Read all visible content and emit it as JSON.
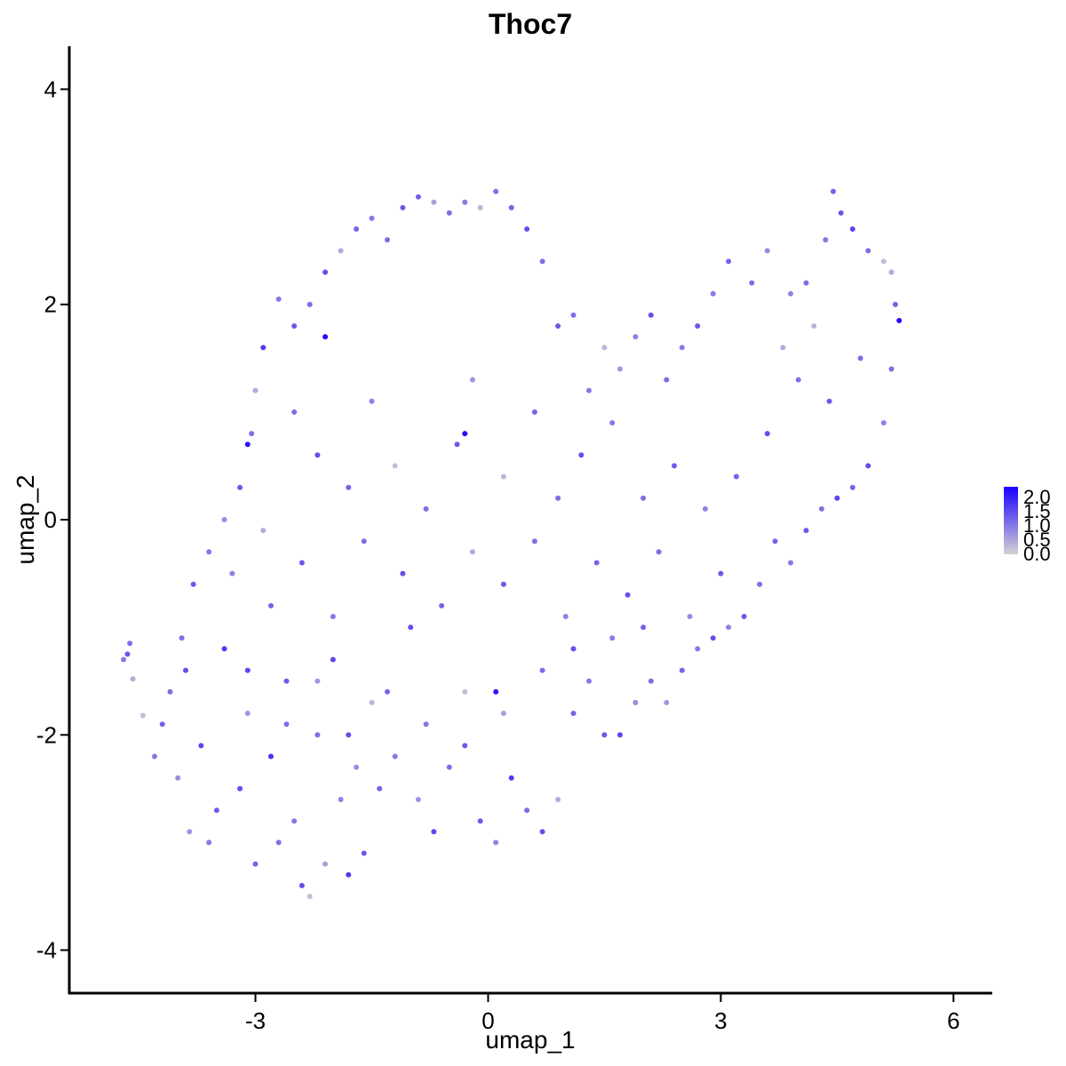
{
  "chart_data": {
    "type": "scatter",
    "title": "Thoc7",
    "xlabel": "umap_1",
    "ylabel": "umap_2",
    "xlim": [
      -5.4,
      6.5
    ],
    "ylim": [
      -4.4,
      4.4
    ],
    "xticks": [
      -3,
      0,
      3,
      6
    ],
    "yticks": [
      -4,
      -2,
      0,
      2,
      4
    ],
    "xtick_labels": [
      "-3",
      "0",
      "3",
      "6"
    ],
    "ytick_labels": [
      "-4",
      "-2",
      "0",
      "2",
      "4"
    ],
    "grid": false,
    "legend": {
      "placement": "right",
      "breaks": [
        "2.0",
        "1.5",
        "1.0",
        "0.5",
        "0.0"
      ],
      "range": [
        0.0,
        2.1
      ],
      "low_color": "#d3d3d3",
      "high_color": "#1a00ff"
    },
    "series": [
      {
        "points": [
          [
            -4.7,
            -1.3,
            0.9
          ],
          [
            -4.65,
            -1.25,
            1.2
          ],
          [
            -4.62,
            -1.15,
            1.0
          ],
          [
            -4.58,
            -1.48,
            0.4
          ],
          [
            -4.45,
            -1.82,
            0.2
          ],
          [
            -4.3,
            -2.2,
            0.9
          ],
          [
            -4.2,
            -1.9,
            1.1
          ],
          [
            -4.1,
            -1.6,
            1.0
          ],
          [
            -4.0,
            -2.4,
            0.7
          ],
          [
            -3.9,
            -1.4,
            1.3
          ],
          [
            -3.85,
            -2.9,
            0.6
          ],
          [
            -3.7,
            -2.1,
            1.4
          ],
          [
            -3.6,
            -3.0,
            0.9
          ],
          [
            -3.5,
            -2.7,
            1.2
          ],
          [
            -3.4,
            -1.2,
            1.5
          ],
          [
            -3.3,
            -0.5,
            0.8
          ],
          [
            -3.2,
            -2.5,
            1.3
          ],
          [
            -3.1,
            -1.8,
            0.6
          ],
          [
            -3.0,
            -3.2,
            1.1
          ],
          [
            -2.9,
            -0.1,
            0.4
          ],
          [
            -2.8,
            -2.2,
            1.6
          ],
          [
            -2.7,
            -3.0,
            1.0
          ],
          [
            -2.6,
            -1.5,
            1.2
          ],
          [
            -2.5,
            -2.8,
            0.9
          ],
          [
            -2.4,
            -3.4,
            1.3
          ],
          [
            -2.3,
            -3.5,
            0.2
          ],
          [
            -2.2,
            -2.0,
            1.0
          ],
          [
            -2.1,
            -3.2,
            0.5
          ],
          [
            -2.0,
            -1.3,
            1.4
          ],
          [
            -1.9,
            -2.6,
            0.8
          ],
          [
            -1.8,
            -3.3,
            1.5
          ],
          [
            -1.7,
            -2.3,
            0.7
          ],
          [
            -1.6,
            -3.1,
            1.2
          ],
          [
            -1.5,
            -1.7,
            0.3
          ],
          [
            -1.4,
            -2.5,
            1.1
          ],
          [
            -1.2,
            -2.2,
            0.9
          ],
          [
            -1.0,
            -1.0,
            1.3
          ],
          [
            -0.9,
            -2.6,
            0.6
          ],
          [
            -0.7,
            -2.9,
            1.4
          ],
          [
            -0.5,
            -2.3,
            1.0
          ],
          [
            -0.3,
            -1.6,
            0.2
          ],
          [
            -0.1,
            -2.8,
            1.2
          ],
          [
            0.1,
            -3.0,
            0.8
          ],
          [
            0.3,
            -2.4,
            1.5
          ],
          [
            0.5,
            -2.7,
            1.0
          ],
          [
            0.7,
            -2.9,
            1.3
          ],
          [
            0.9,
            -2.6,
            0.4
          ],
          [
            1.1,
            -1.8,
            1.1
          ],
          [
            1.3,
            -1.5,
            0.9
          ],
          [
            1.5,
            -2.0,
            1.2
          ],
          [
            1.7,
            -2.0,
            1.4
          ],
          [
            1.9,
            -1.7,
            0.7
          ],
          [
            2.1,
            -1.5,
            1.0
          ],
          [
            2.3,
            -1.7,
            0.6
          ],
          [
            2.5,
            -1.4,
            1.1
          ],
          [
            2.7,
            -1.2,
            0.9
          ],
          [
            2.9,
            -1.1,
            1.3
          ],
          [
            3.1,
            -1.0,
            0.8
          ],
          [
            3.3,
            -0.9,
            1.2
          ],
          [
            3.5,
            -0.6,
            1.0
          ],
          [
            3.7,
            -0.2,
            1.1
          ],
          [
            3.9,
            -0.4,
            0.9
          ],
          [
            4.1,
            -0.1,
            1.2
          ],
          [
            4.3,
            0.1,
            1.0
          ],
          [
            4.5,
            0.2,
            1.4
          ],
          [
            4.7,
            0.3,
            1.1
          ],
          [
            4.9,
            0.5,
            1.3
          ],
          [
            5.1,
            0.9,
            0.8
          ],
          [
            5.2,
            1.4,
            1.0
          ],
          [
            5.3,
            1.85,
            2.0
          ],
          [
            5.25,
            2.0,
            1.1
          ],
          [
            5.2,
            2.3,
            0.4
          ],
          [
            5.1,
            2.4,
            0.2
          ],
          [
            4.9,
            2.5,
            1.0
          ],
          [
            4.7,
            2.7,
            1.4
          ],
          [
            4.55,
            2.85,
            1.2
          ],
          [
            4.45,
            3.05,
            1.1
          ],
          [
            4.35,
            2.6,
            0.9
          ],
          [
            4.1,
            2.2,
            1.0
          ],
          [
            3.9,
            2.1,
            0.8
          ],
          [
            3.6,
            2.5,
            0.7
          ],
          [
            3.4,
            2.2,
            1.0
          ],
          [
            3.1,
            2.4,
            1.1
          ],
          [
            2.9,
            2.1,
            0.9
          ],
          [
            2.7,
            1.8,
            1.2
          ],
          [
            2.5,
            1.6,
            0.9
          ],
          [
            2.3,
            1.3,
            1.0
          ],
          [
            2.1,
            1.9,
            1.3
          ],
          [
            1.9,
            1.7,
            0.8
          ],
          [
            1.7,
            1.4,
            0.6
          ],
          [
            1.5,
            1.6,
            0.3
          ],
          [
            1.3,
            1.2,
            0.9
          ],
          [
            1.1,
            1.9,
            1.0
          ],
          [
            0.9,
            1.8,
            1.2
          ],
          [
            0.7,
            2.4,
            1.0
          ],
          [
            0.5,
            2.7,
            1.3
          ],
          [
            0.3,
            2.9,
            1.1
          ],
          [
            0.1,
            3.05,
            1.0
          ],
          [
            -0.1,
            2.9,
            0.3
          ],
          [
            -0.3,
            2.95,
            0.9
          ],
          [
            -0.5,
            2.85,
            1.0
          ],
          [
            -0.7,
            2.95,
            0.5
          ],
          [
            -0.9,
            3.0,
            1.1
          ],
          [
            -1.1,
            2.9,
            1.2
          ],
          [
            -1.3,
            2.6,
            1.0
          ],
          [
            -1.5,
            2.8,
            0.9
          ],
          [
            -1.7,
            2.7,
            1.1
          ],
          [
            -1.9,
            2.5,
            0.4
          ],
          [
            -2.1,
            2.3,
            1.3
          ],
          [
            -2.3,
            2.0,
            1.0
          ],
          [
            -2.5,
            1.8,
            1.2
          ],
          [
            -2.7,
            2.05,
            0.9
          ],
          [
            -2.9,
            1.6,
            1.5
          ],
          [
            -3.0,
            1.2,
            0.4
          ],
          [
            -3.05,
            0.8,
            1.0
          ],
          [
            -3.2,
            0.3,
            1.2
          ],
          [
            -3.4,
            0.0,
            0.7
          ],
          [
            -3.6,
            -0.3,
            0.9
          ],
          [
            -3.8,
            -0.6,
            1.2
          ],
          [
            -3.95,
            -1.1,
            1.0
          ],
          [
            -2.5,
            1.0,
            1.0
          ],
          [
            -2.2,
            0.6,
            1.3
          ],
          [
            -1.8,
            0.3,
            1.1
          ],
          [
            -1.5,
            1.1,
            0.8
          ],
          [
            -1.2,
            0.5,
            0.2
          ],
          [
            -0.8,
            0.1,
            1.0
          ],
          [
            -0.4,
            0.7,
            1.2
          ],
          [
            -0.2,
            1.3,
            0.6
          ],
          [
            0.2,
            0.4,
            0.3
          ],
          [
            0.6,
            1.0,
            1.1
          ],
          [
            0.9,
            0.2,
            1.0
          ],
          [
            1.2,
            0.6,
            1.3
          ],
          [
            1.6,
            0.9,
            0.9
          ],
          [
            2.0,
            0.2,
            1.0
          ],
          [
            2.4,
            0.5,
            1.2
          ],
          [
            2.8,
            0.1,
            0.8
          ],
          [
            3.2,
            0.4,
            1.1
          ],
          [
            3.6,
            0.8,
            1.3
          ],
          [
            4.0,
            1.3,
            1.0
          ],
          [
            4.4,
            1.1,
            1.2
          ],
          [
            4.8,
            1.5,
            1.0
          ],
          [
            3.8,
            1.6,
            0.4
          ],
          [
            4.2,
            1.8,
            0.3
          ],
          [
            -2.8,
            -0.8,
            1.1
          ],
          [
            -2.4,
            -0.4,
            1.2
          ],
          [
            -2.0,
            -0.9,
            0.9
          ],
          [
            -1.6,
            -0.2,
            1.0
          ],
          [
            -1.1,
            -0.5,
            1.3
          ],
          [
            -0.6,
            -0.8,
            1.1
          ],
          [
            -0.2,
            -0.3,
            0.4
          ],
          [
            0.2,
            -0.6,
            1.2
          ],
          [
            0.6,
            -0.2,
            1.0
          ],
          [
            1.0,
            -0.9,
            0.8
          ],
          [
            1.4,
            -0.4,
            1.1
          ],
          [
            1.8,
            -0.7,
            1.3
          ],
          [
            2.2,
            -0.3,
            1.0
          ],
          [
            2.6,
            -0.9,
            0.7
          ],
          [
            3.0,
            -0.5,
            1.2
          ],
          [
            -3.1,
            -1.4,
            1.4
          ],
          [
            -2.6,
            -1.9,
            1.0
          ],
          [
            -2.2,
            -1.5,
            0.6
          ],
          [
            -1.8,
            -2.0,
            1.3
          ],
          [
            -1.3,
            -1.6,
            1.1
          ],
          [
            -0.8,
            -1.9,
            0.9
          ],
          [
            -0.3,
            -2.1,
            1.2
          ],
          [
            0.2,
            -1.8,
            0.5
          ],
          [
            0.7,
            -1.4,
            1.0
          ],
          [
            1.1,
            -1.2,
            1.3
          ],
          [
            1.6,
            -1.1,
            0.9
          ],
          [
            2.0,
            -1.0,
            1.1
          ],
          [
            -0.3,
            0.8,
            2.0
          ],
          [
            -2.1,
            1.7,
            2.0
          ],
          [
            -3.1,
            0.7,
            1.9
          ],
          [
            0.1,
            -1.6,
            1.9
          ]
        ]
      }
    ]
  }
}
